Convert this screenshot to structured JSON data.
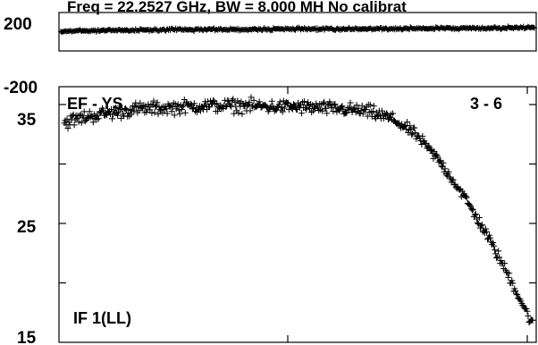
{
  "title": "Freq = 22.2527 GHz, BW = 8.000 MH  No calibrat",
  "chart_data": [
    {
      "type": "scatter",
      "panel": "phase",
      "ylim": [
        -200,
        200
      ],
      "yticks": [
        "200",
        "-200"
      ],
      "values": [
        [
          0,
          175
        ],
        [
          0.05,
          178
        ],
        [
          0.1,
          180
        ],
        [
          0.2,
          183
        ],
        [
          0.3,
          185
        ],
        [
          0.4,
          186
        ],
        [
          0.5,
          187
        ],
        [
          0.6,
          188
        ],
        [
          0.7,
          189
        ],
        [
          0.8,
          191
        ],
        [
          0.9,
          193
        ],
        [
          1.0,
          195
        ]
      ],
      "grid": false
    },
    {
      "type": "scatter",
      "panel": "amplitude",
      "ylim": [
        15,
        36.5
      ],
      "yticks": [
        "35",
        "25",
        "15"
      ],
      "labels": {
        "top_left": "EF - YS",
        "top_right": "3 - 6",
        "bottom_left": "IF 1(LL)"
      },
      "values": [
        [
          0,
          33.5
        ],
        [
          0.05,
          34.0
        ],
        [
          0.1,
          34.3
        ],
        [
          0.15,
          34.6
        ],
        [
          0.2,
          34.7
        ],
        [
          0.25,
          34.8
        ],
        [
          0.3,
          34.9
        ],
        [
          0.35,
          34.9
        ],
        [
          0.4,
          34.9
        ],
        [
          0.45,
          34.8
        ],
        [
          0.5,
          34.8
        ],
        [
          0.55,
          34.7
        ],
        [
          0.6,
          34.6
        ],
        [
          0.65,
          34.4
        ],
        [
          0.7,
          33.8
        ],
        [
          0.75,
          32.5
        ],
        [
          0.8,
          30.3
        ],
        [
          0.85,
          27.5
        ],
        [
          0.9,
          24.2
        ],
        [
          0.95,
          20.5
        ],
        [
          1.0,
          16.5
        ]
      ],
      "grid": false
    }
  ]
}
